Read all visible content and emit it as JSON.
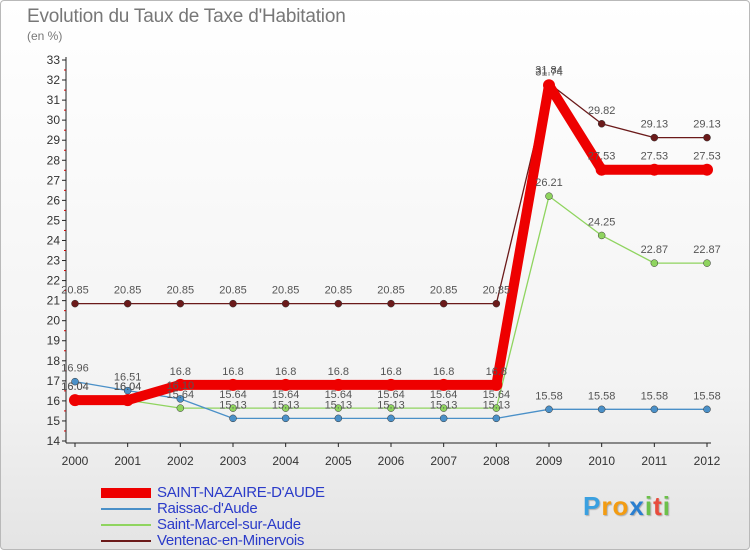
{
  "title": "Evolution du Taux de Taxe d'Habitation",
  "unit": "(en %)",
  "chart_data": {
    "type": "line",
    "x": [
      "2000",
      "2001",
      "2002",
      "2003",
      "2004",
      "2005",
      "2006",
      "2007",
      "2008",
      "2009",
      "2010",
      "2011",
      "2012"
    ],
    "ylim": [
      14,
      33
    ],
    "yticks": [
      14,
      15,
      16,
      17,
      18,
      19,
      20,
      21,
      22,
      23,
      24,
      25,
      26,
      27,
      28,
      29,
      30,
      31,
      32,
      33
    ],
    "grid": false,
    "legend_position": "bottom-left",
    "series": [
      {
        "name": "SAINT-NAZAIRE-D'AUDE",
        "color": "#ee0000",
        "values": [
          16.04,
          16.04,
          16.8,
          16.8,
          16.8,
          16.8,
          16.8,
          16.8,
          16.8,
          31.74,
          27.53,
          27.53,
          27.53
        ],
        "labels": [
          "16.04",
          "16.04",
          "16.8",
          "16.8",
          "16.8",
          "16.8",
          "16.8",
          "16.8",
          "16.8",
          "31.74",
          "27.53",
          "27.53",
          "27.53"
        ]
      },
      {
        "name": "Raissac-d'Aude",
        "color": "#4a90c8",
        "values": [
          16.96,
          16.51,
          16.1,
          15.13,
          15.13,
          15.13,
          15.13,
          15.13,
          15.13,
          15.58,
          15.58,
          15.58,
          15.58
        ],
        "labels": [
          "16.96",
          "16.51",
          "16.10",
          "15.13",
          "15.13",
          "15.13",
          "15.13",
          "15.13",
          "15.13",
          "15.58",
          "15.58",
          "15.58",
          "15.58"
        ]
      },
      {
        "name": "Saint-Marcel-sur-Aude",
        "color": "#8fd45f",
        "values": [
          16.04,
          16.04,
          15.64,
          15.64,
          15.64,
          15.64,
          15.64,
          15.64,
          15.64,
          26.21,
          24.25,
          22.87,
          22.87
        ],
        "labels": [
          "16.04",
          "16.04",
          "15.64",
          "15.64",
          "15.64",
          "15.64",
          "15.64",
          "15.64",
          "15.64",
          "26.21",
          "24.25",
          "22.87",
          "22.87"
        ]
      },
      {
        "name": "Ventenac-en-Minervois",
        "color": "#6b1a1a",
        "values": [
          20.85,
          20.85,
          20.85,
          20.85,
          20.85,
          20.85,
          20.85,
          20.85,
          20.85,
          31.84,
          29.82,
          29.13,
          29.13
        ],
        "labels": [
          "20.85",
          "20.85",
          "20.85",
          "20.85",
          "20.85",
          "20.85",
          "20.85",
          "20.85",
          "20.85",
          "31.84",
          "29.82",
          "29.13",
          "29.13"
        ]
      }
    ]
  },
  "logo": {
    "letters": [
      "P",
      "r",
      "o",
      "x",
      "i",
      "t",
      "i"
    ],
    "colors": [
      "#3aa0e0",
      "#f39c12",
      "#f39c12",
      "#2a7fd0",
      "#6cc04a",
      "#e84c3d",
      "#6cc04a"
    ]
  }
}
